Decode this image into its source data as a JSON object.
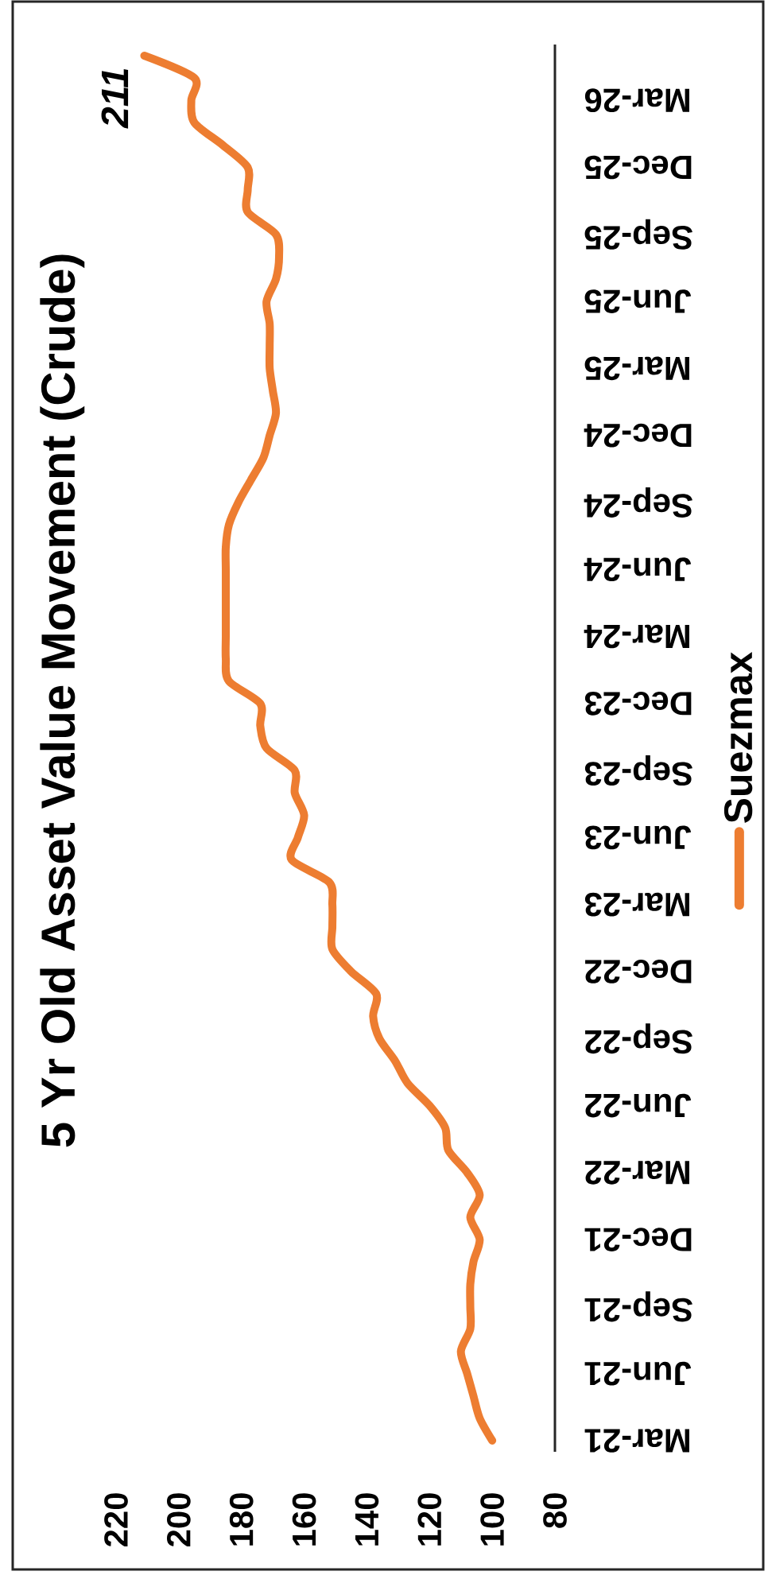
{
  "chart_data": {
    "type": "line",
    "title": "5 Yr Old Asset Value Movement (Crude)",
    "orientation": "horizontal",
    "categories": [
      null,
      null,
      "Mar-26",
      null,
      null,
      "Dec-25",
      null,
      null,
      "Sep-25",
      null,
      null,
      "Jun-25",
      null,
      null,
      "Mar-25",
      null,
      null,
      "Dec-24",
      null,
      null,
      "Sep-24",
      null,
      null,
      "Jun-24",
      null,
      null,
      "Mar-24",
      null,
      null,
      "Dec-23",
      null,
      null,
      "Sep-23",
      null,
      null,
      "Jun-23",
      null,
      null,
      "Mar-23",
      null,
      null,
      "Dec-22",
      null,
      null,
      "Sep-22",
      null,
      null,
      "Jun-22",
      null,
      null,
      "Mar-22",
      null,
      null,
      "Dec-21",
      null,
      null,
      "Sep-21",
      null,
      null,
      "Jun-21",
      null,
      null,
      "Mar-21"
    ],
    "series": [
      {
        "name": "Suezmax",
        "color": "#ed7d31",
        "values": [
          211,
          195,
          196,
          195,
          186,
          178,
          178,
          178,
          169,
          168,
          169,
          172,
          171,
          171,
          171,
          170,
          169,
          171,
          173,
          177,
          181,
          184,
          185,
          185,
          185,
          185,
          185,
          185,
          184,
          174,
          174,
          172,
          163,
          163,
          160,
          162,
          164,
          152,
          151,
          151,
          151,
          145,
          137,
          138,
          136,
          131,
          127,
          120,
          115,
          114,
          108,
          104,
          107,
          104,
          106,
          107,
          107,
          107,
          110,
          108,
          106,
          104,
          100
        ],
        "value_labels": [
          "211",
          null,
          null,
          null,
          null,
          null,
          null,
          null,
          null,
          null,
          null,
          null,
          null,
          null,
          null,
          null,
          null,
          null,
          null,
          null,
          null,
          null,
          null,
          null,
          null,
          null,
          null,
          null,
          null,
          null,
          null,
          null,
          null,
          null,
          null,
          null,
          null,
          null,
          null,
          null,
          null,
          null,
          null,
          null,
          null,
          null,
          null,
          null,
          null,
          null,
          null,
          null,
          null,
          null,
          null,
          null,
          null,
          null,
          null,
          null,
          null,
          null,
          null
        ]
      }
    ],
    "xlim": [
      220,
      80
    ],
    "xticks": [
      220,
      200,
      180,
      160,
      140,
      120,
      100,
      80
    ],
    "legend": "right",
    "marker": "none",
    "line_style": "solid"
  }
}
